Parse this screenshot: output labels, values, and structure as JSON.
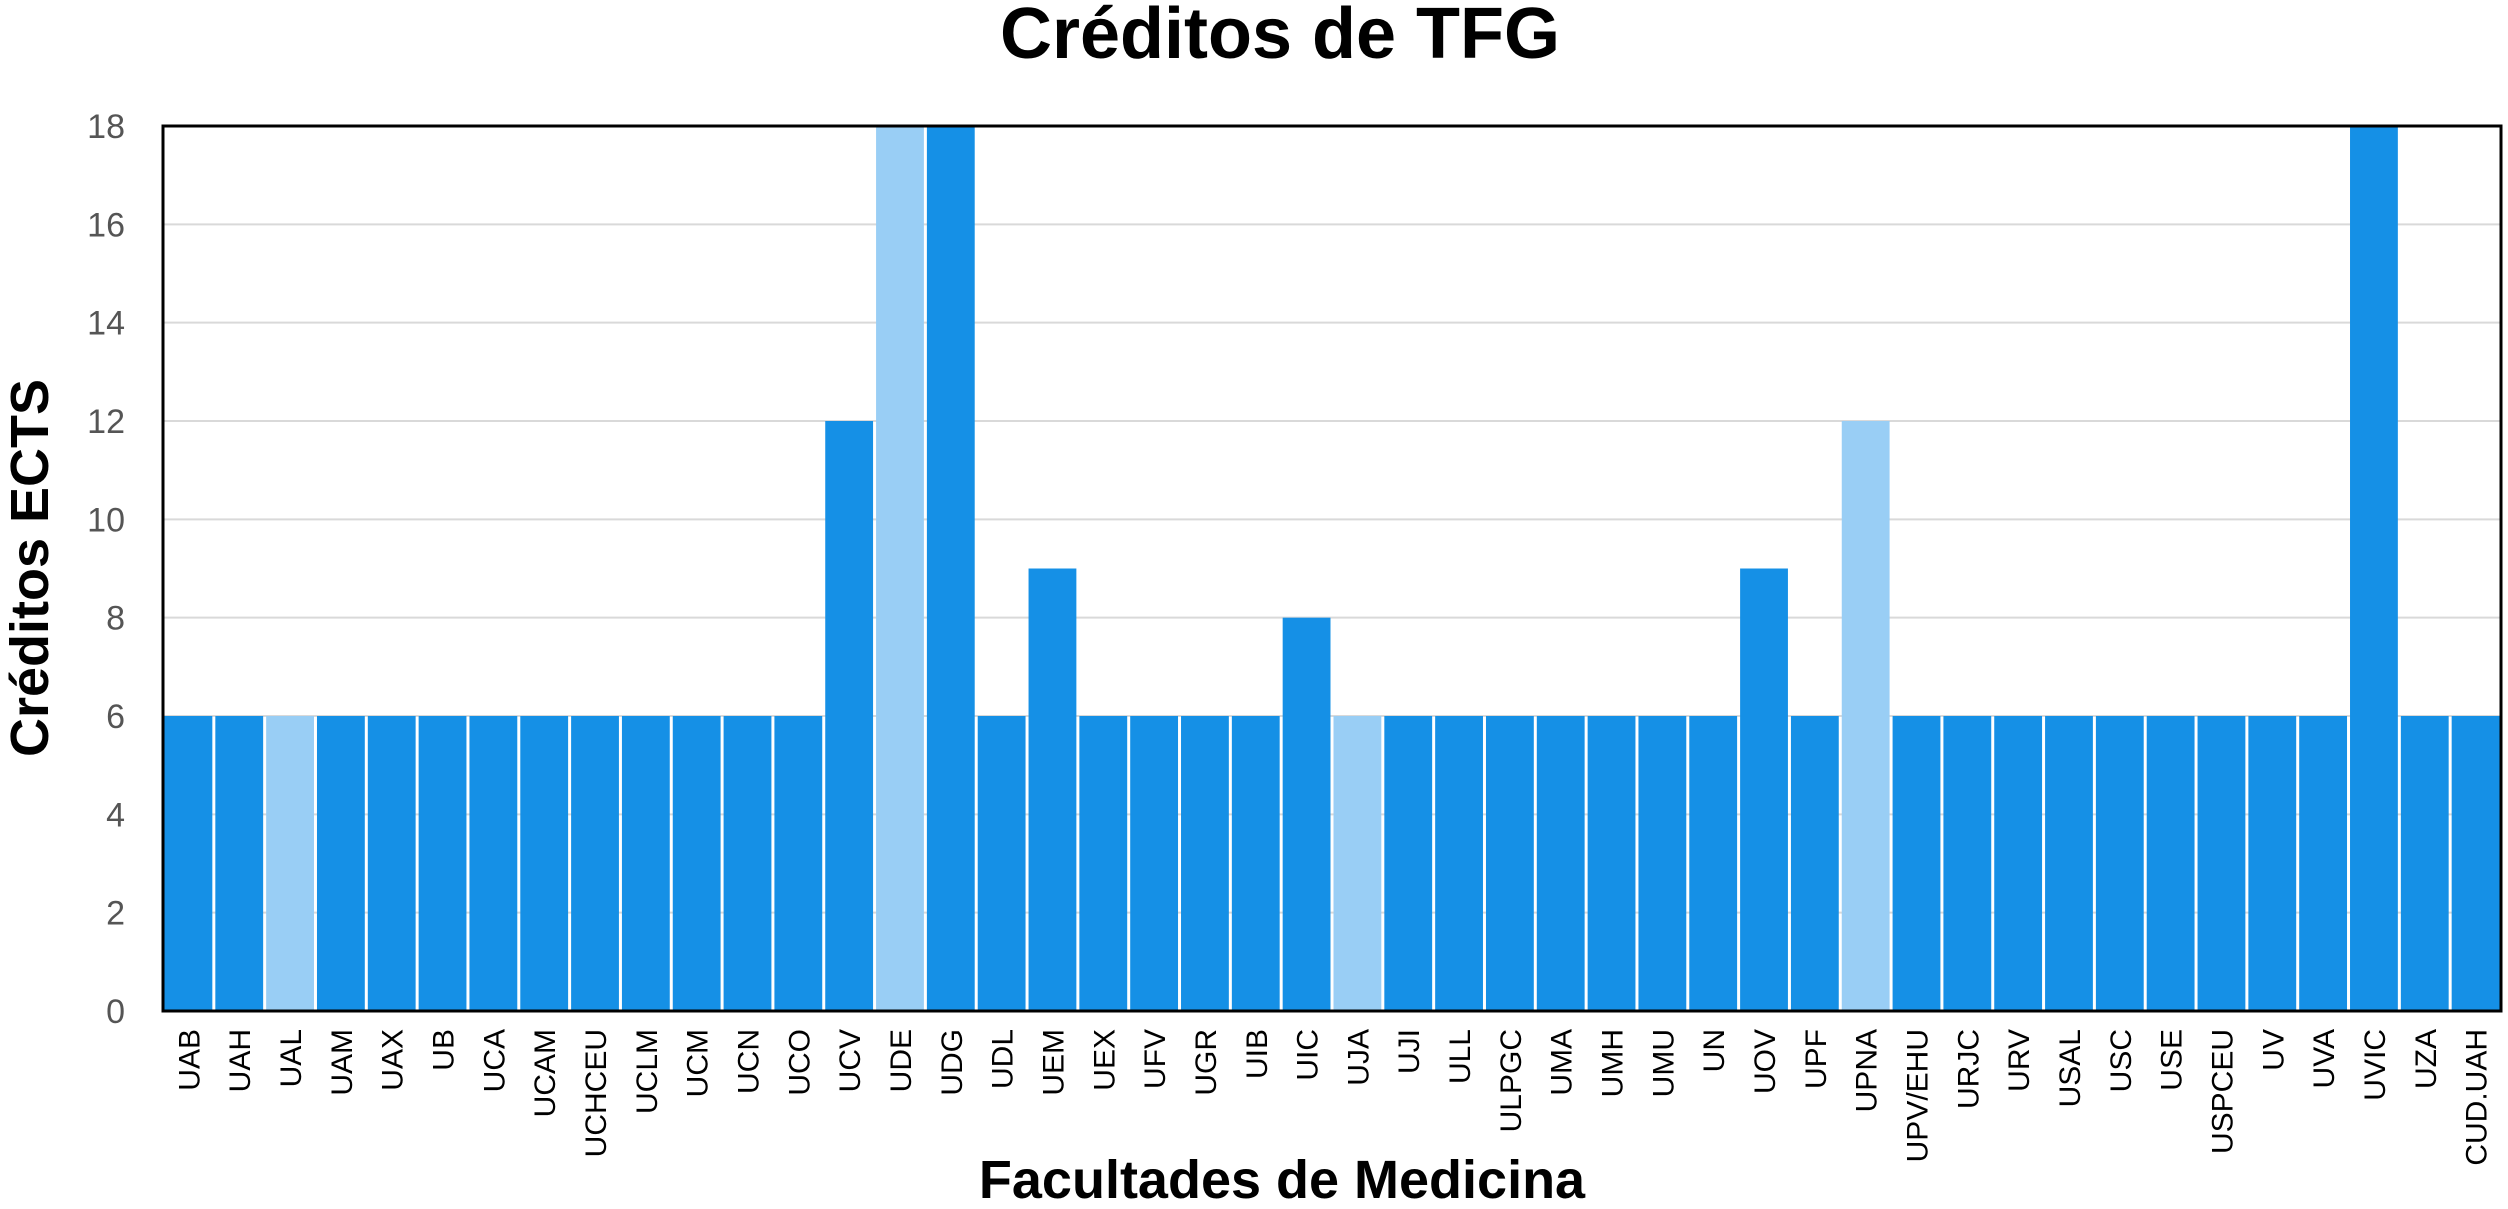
{
  "chart_data": {
    "type": "bar",
    "title": "Créditos de TFG",
    "xlabel": "Facultades de Medicina",
    "ylabel": "Créditos ECTS",
    "ylim": [
      0,
      18
    ],
    "yticks": [
      0,
      2,
      4,
      6,
      8,
      10,
      12,
      14,
      16,
      18
    ],
    "grid": true,
    "legend": "none",
    "colors": {
      "primary": "#1590E6",
      "highlight": "#99CEF5"
    },
    "categories": [
      "UAB",
      "UAH",
      "UAL",
      "UAM",
      "UAX",
      "UB",
      "UCA",
      "UCAM",
      "UCHCEU",
      "UCLM",
      "UCM",
      "UCN",
      "UCO",
      "UCV",
      "UDE",
      "UDG",
      "UDL",
      "UEM",
      "UEX",
      "UFV",
      "UGR",
      "UIB",
      "UIC",
      "UJA",
      "UJI",
      "ULL",
      "ULPGC",
      "UMA",
      "UMH",
      "UMU",
      "UN",
      "UOV",
      "UPF",
      "UPNA",
      "UPV/EHU",
      "URJC",
      "URV",
      "USAL",
      "USC",
      "USE",
      "USPCEU",
      "UV",
      "UVA",
      "UVIC",
      "UZA",
      "CUD.UAH"
    ],
    "values": [
      6,
      6,
      6,
      6,
      6,
      6,
      6,
      6,
      6,
      6,
      6,
      6,
      6,
      12,
      18,
      18,
      6,
      9,
      6,
      6,
      6,
      6,
      8,
      6,
      6,
      6,
      6,
      6,
      6,
      6,
      6,
      9,
      6,
      12,
      6,
      6,
      6,
      6,
      6,
      6,
      6,
      6,
      6,
      18,
      6,
      6
    ],
    "highlighted": [
      "UAL",
      "UDE",
      "UJA",
      "UPNA"
    ]
  }
}
